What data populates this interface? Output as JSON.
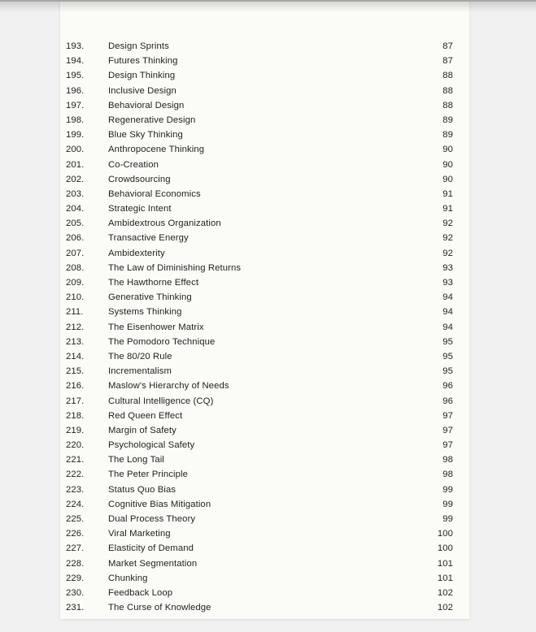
{
  "document": {
    "kind": "table-of-contents-page",
    "page_background": "#fbfbf7",
    "canvas_background": "#f1f1f1",
    "text_color": "#1f1f1f"
  },
  "toc": {
    "entries": [
      {
        "number": "193.",
        "title": "Design Sprints",
        "page": "87"
      },
      {
        "number": "194.",
        "title": "Futures Thinking",
        "page": "87"
      },
      {
        "number": "195.",
        "title": "Design Thinking",
        "page": "88"
      },
      {
        "number": "196.",
        "title": "Inclusive Design",
        "page": "88"
      },
      {
        "number": "197.",
        "title": "Behavioral Design",
        "page": "88"
      },
      {
        "number": "198.",
        "title": "Regenerative Design",
        "page": "89"
      },
      {
        "number": "199.",
        "title": "Blue Sky Thinking",
        "page": "89"
      },
      {
        "number": "200.",
        "title": "Anthropocene Thinking",
        "page": "90"
      },
      {
        "number": "201.",
        "title": "Co-Creation",
        "page": "90"
      },
      {
        "number": "202.",
        "title": "Crowdsourcing",
        "page": "90"
      },
      {
        "number": "203.",
        "title": "Behavioral Economics",
        "page": "91"
      },
      {
        "number": "204.",
        "title": "Strategic Intent",
        "page": "91"
      },
      {
        "number": "205.",
        "title": "Ambidextrous Organization",
        "page": "92"
      },
      {
        "number": "206.",
        "title": "Transactive Energy",
        "page": "92"
      },
      {
        "number": "207.",
        "title": "Ambidexterity",
        "page": "92"
      },
      {
        "number": "208.",
        "title": "The Law of Diminishing Returns",
        "page": "93"
      },
      {
        "number": "209.",
        "title": "The Hawthorne Effect",
        "page": "93"
      },
      {
        "number": "210.",
        "title": "Generative Thinking",
        "page": "94"
      },
      {
        "number": "211.",
        "title": "Systems Thinking",
        "page": "94"
      },
      {
        "number": "212.",
        "title": "The Eisenhower Matrix",
        "page": "94"
      },
      {
        "number": "213.",
        "title": "The Pomodoro Technique",
        "page": "95"
      },
      {
        "number": "214.",
        "title": "The 80/20 Rule",
        "page": "95"
      },
      {
        "number": "215.",
        "title": "Incrementalism",
        "page": "95"
      },
      {
        "number": "216.",
        "title": "Maslow's Hierarchy of Needs",
        "page": "96"
      },
      {
        "number": "217.",
        "title": "Cultural Intelligence (CQ)",
        "page": "96"
      },
      {
        "number": "218.",
        "title": "Red Queen Effect",
        "page": "97"
      },
      {
        "number": "219.",
        "title": "Margin of Safety",
        "page": "97"
      },
      {
        "number": "220.",
        "title": "Psychological Safety",
        "page": "97"
      },
      {
        "number": "221.",
        "title": "The Long Tail",
        "page": "98"
      },
      {
        "number": "222.",
        "title": "The Peter Principle",
        "page": "98"
      },
      {
        "number": "223.",
        "title": "Status Quo Bias",
        "page": "99"
      },
      {
        "number": "224.",
        "title": "Cognitive Bias Mitigation",
        "page": "99"
      },
      {
        "number": "225.",
        "title": "Dual Process Theory",
        "page": "99"
      },
      {
        "number": "226.",
        "title": "Viral Marketing",
        "page": "100"
      },
      {
        "number": "227.",
        "title": "Elasticity of Demand",
        "page": "100"
      },
      {
        "number": "228.",
        "title": "Market Segmentation",
        "page": "101"
      },
      {
        "number": "229.",
        "title": "Chunking",
        "page": "101"
      },
      {
        "number": "230.",
        "title": "Feedback Loop",
        "page": "102"
      },
      {
        "number": "231.",
        "title": "The Curse of Knowledge",
        "page": "102"
      }
    ]
  }
}
